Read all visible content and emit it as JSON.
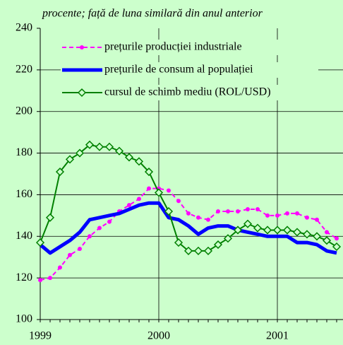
{
  "chart_data": {
    "type": "line",
    "subtitle": "procente; față de luna similară din anul anterior",
    "categories": [
      "1999",
      null,
      null,
      null,
      null,
      null,
      null,
      null,
      null,
      null,
      null,
      null,
      "2000",
      null,
      null,
      null,
      null,
      null,
      null,
      null,
      null,
      null,
      null,
      null,
      "2001",
      null,
      null,
      null,
      null,
      null,
      null
    ],
    "series": [
      {
        "name": "prețurile producției industriale",
        "color": "#ff00ff",
        "marker": "circle",
        "dash": true,
        "values": [
          119,
          120,
          125,
          131,
          134,
          140,
          144,
          147,
          152,
          155,
          158,
          163,
          163,
          162,
          157,
          151,
          149,
          148,
          152,
          152,
          152,
          153,
          153,
          150,
          150,
          151,
          151,
          149,
          148,
          142,
          139
        ]
      },
      {
        "name": "prețurile de consum al populației",
        "color": "#0000ff",
        "marker": null,
        "dash": false,
        "values": [
          136,
          132,
          135,
          138,
          142,
          148,
          149,
          150,
          151,
          153,
          155,
          156,
          156,
          149,
          148,
          145,
          141,
          144,
          145,
          145,
          143,
          142,
          141,
          140,
          140,
          140,
          137,
          137,
          136,
          133,
          132
        ]
      },
      {
        "name": "cursul de schimb mediu (ROL/USD)",
        "color": "#008000",
        "marker": "diamond",
        "dash": false,
        "values": [
          137,
          149,
          171,
          177,
          180,
          184,
          183,
          183,
          181,
          178,
          176,
          171,
          161,
          152,
          137,
          133,
          133,
          133,
          136,
          139,
          143,
          146,
          144,
          143,
          143,
          143,
          142,
          141,
          140,
          138,
          135
        ]
      }
    ],
    "ylim": [
      100,
      240
    ],
    "yticks": [
      100,
      120,
      140,
      160,
      180,
      200,
      220,
      240
    ],
    "grid": true
  }
}
